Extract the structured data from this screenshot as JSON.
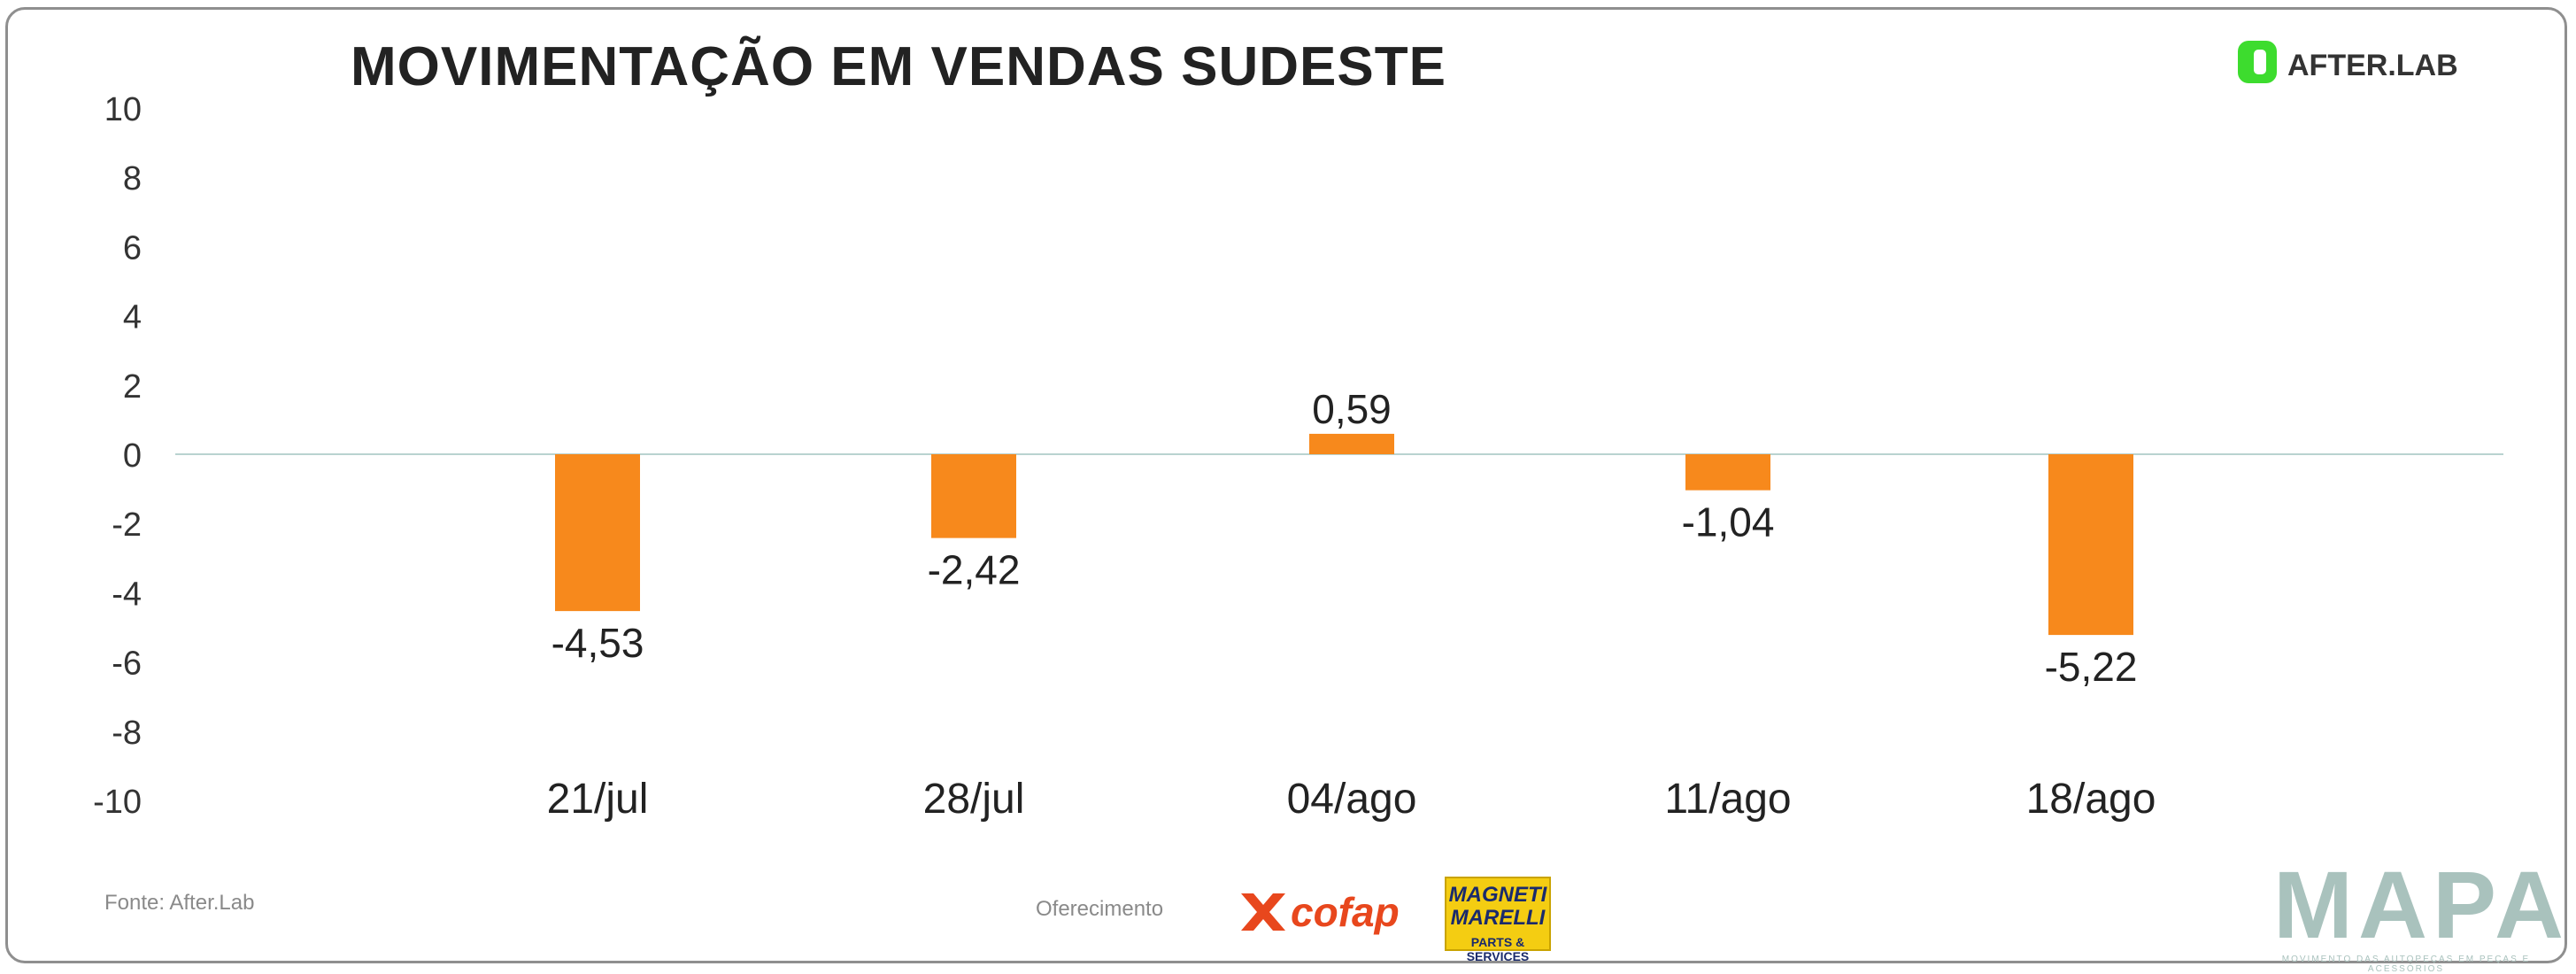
{
  "header": {
    "title": "MOVIMENTAÇÃO EM VENDAS SUDESTE",
    "brand_logo_text": "AFTER.LAB"
  },
  "footer": {
    "source": "Fonte: After.Lab",
    "sponsor_label": "Oferecimento",
    "sponsors": [
      "cofap",
      "MAGNETI MARELLI",
      "PARTS & SERVICES"
    ],
    "mapa_word": "MAPA",
    "mapa_tagline": "MOVIMENTO DAS AUTOPEÇAS EM PEÇAS E ACESSÓRIOS"
  },
  "chart_data": {
    "type": "bar",
    "title": "MOVIMENTAÇÃO EM VENDAS SUDESTE",
    "xlabel": "",
    "ylabel": "",
    "categories": [
      "21/jul",
      "28/jul",
      "04/ago",
      "11/ago",
      "18/ago"
    ],
    "values": [
      -4.53,
      -2.42,
      0.59,
      -1.04,
      -5.22
    ],
    "value_labels": [
      "-4,53",
      "-2,42",
      "0,59",
      "-1,04",
      "-5,22"
    ],
    "ylim": [
      -10,
      10
    ],
    "yticks": [
      10,
      8,
      6,
      4,
      2,
      0,
      -2,
      -4,
      -6,
      -8,
      -10
    ],
    "ytick_labels": [
      "10",
      "8",
      "6",
      "4",
      "2",
      "0",
      "-2",
      "-4",
      "-6",
      "-8",
      "-10"
    ],
    "grid": false,
    "legend": "none",
    "bar_color": "#f7891c",
    "zero_line_color": "#b9d3d0"
  }
}
